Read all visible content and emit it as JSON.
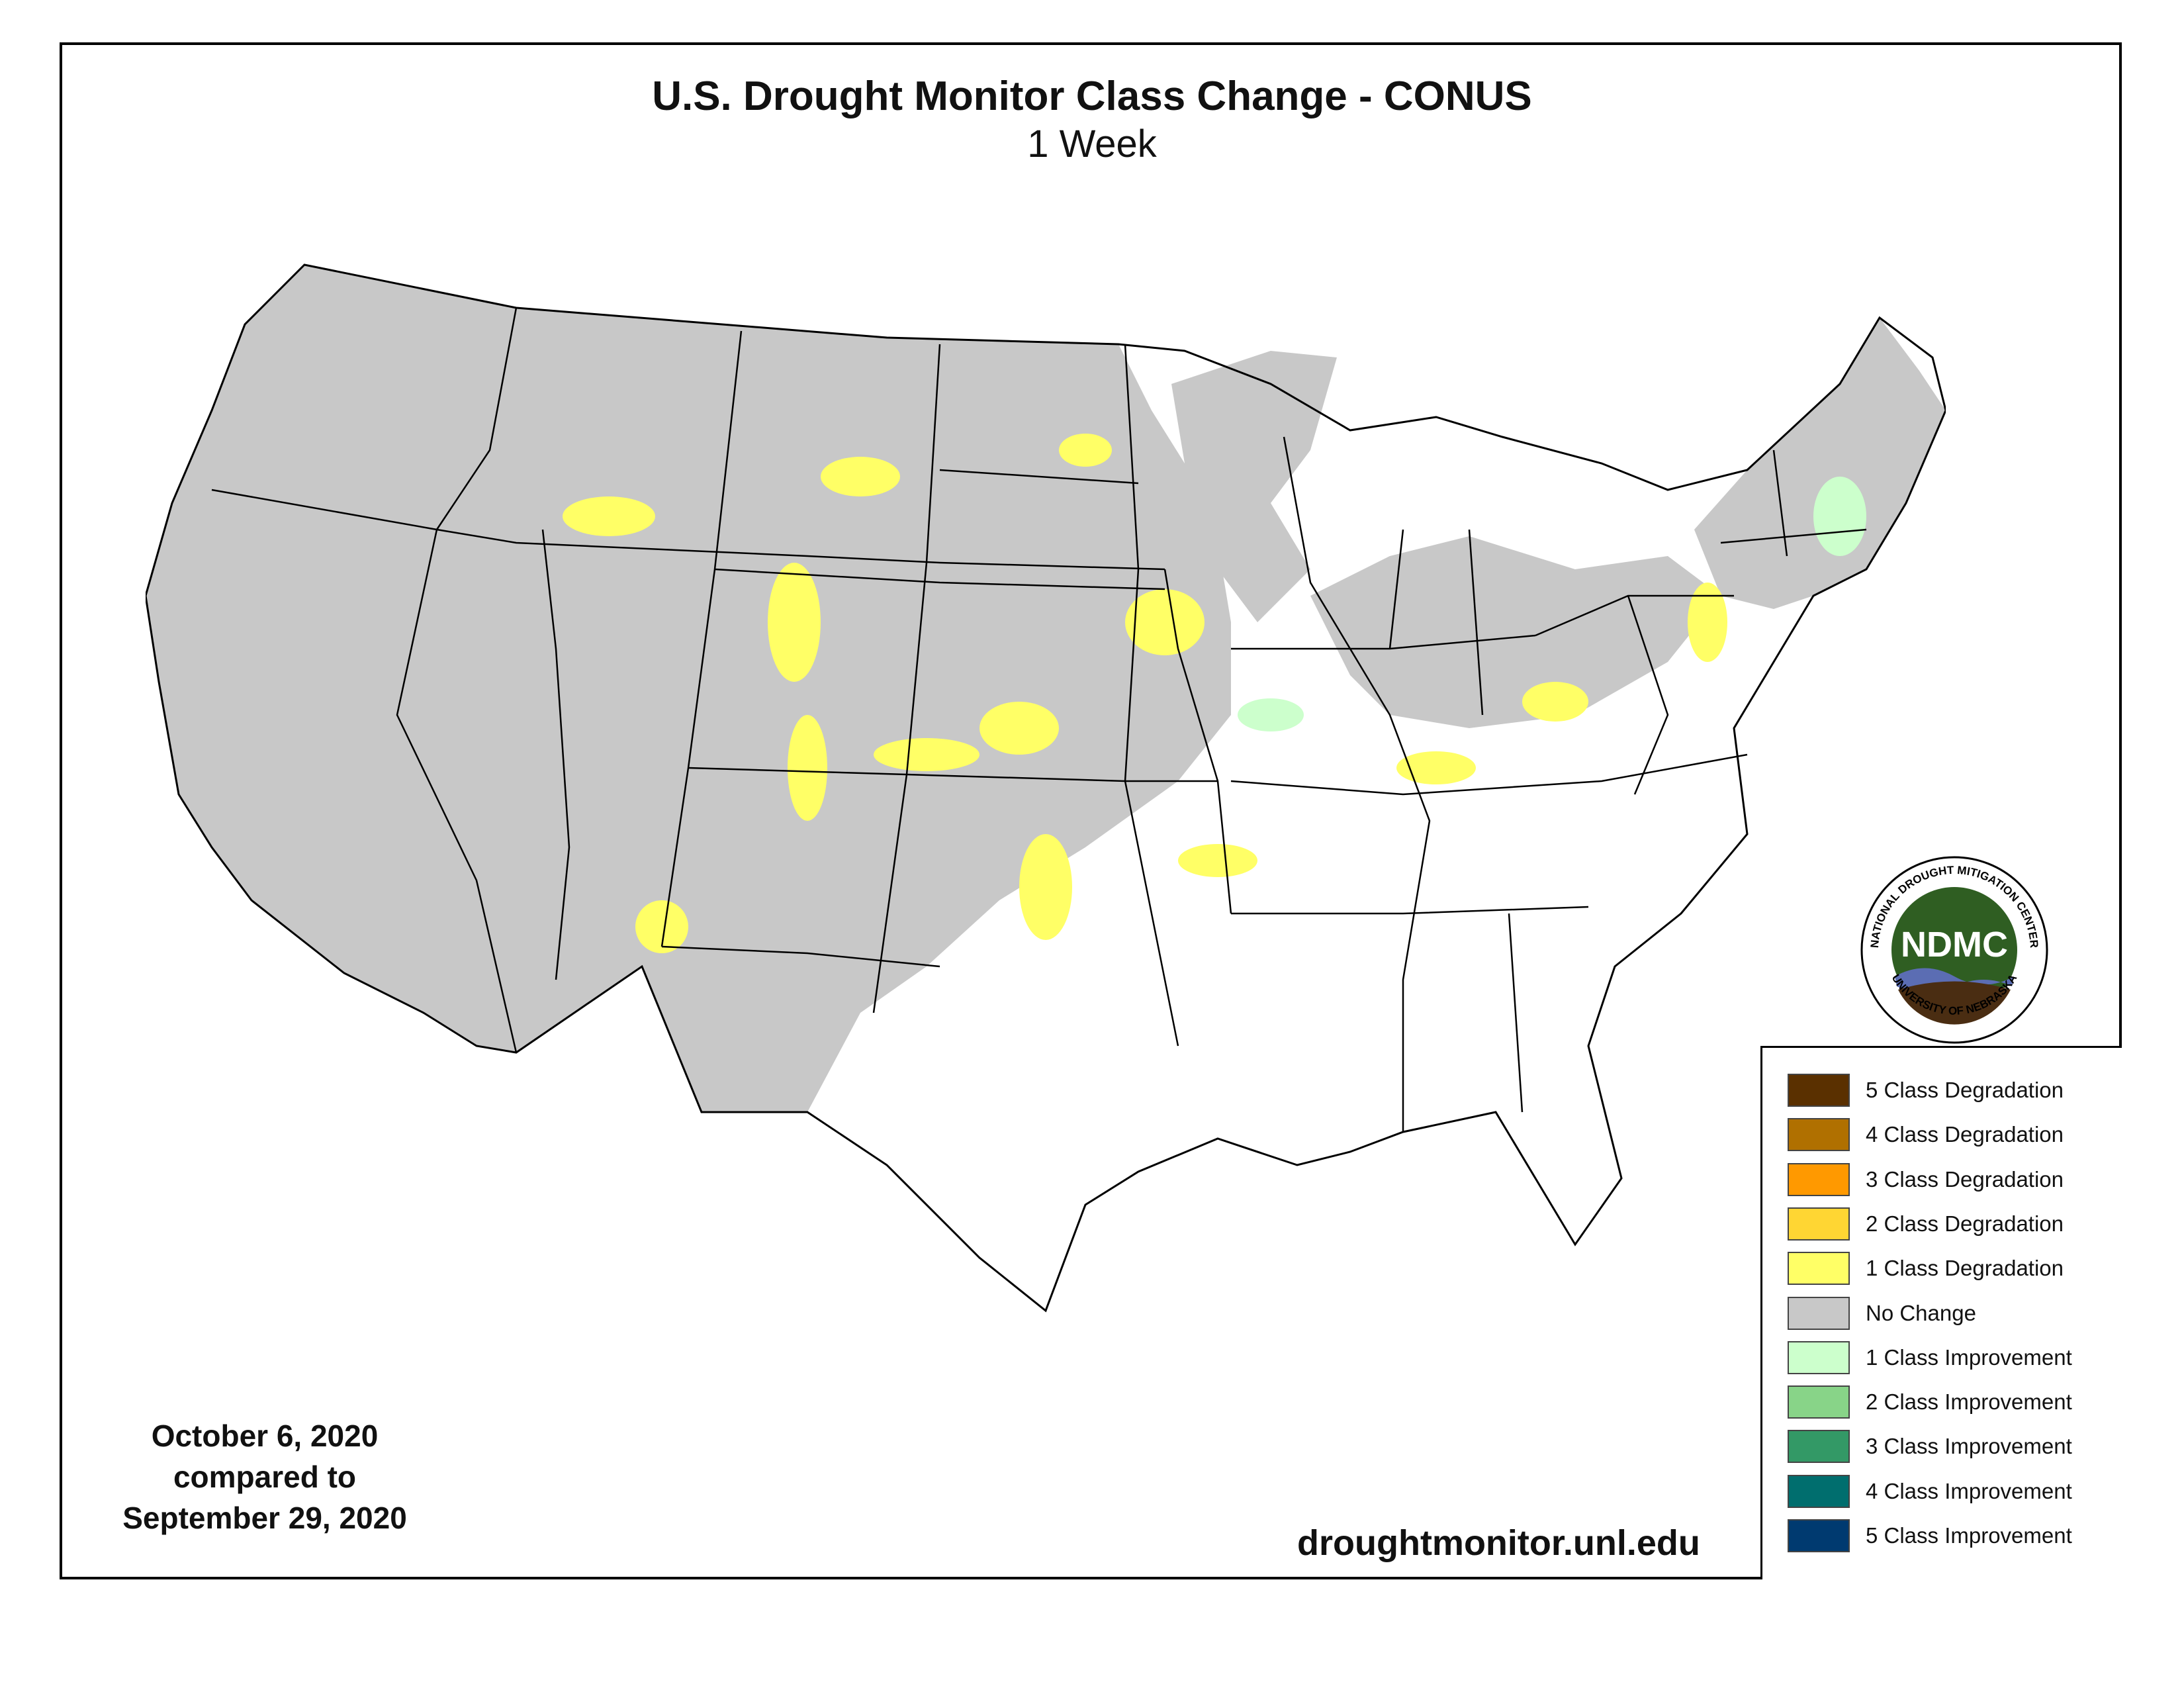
{
  "title": "U.S. Drought Monitor Class Change - CONUS",
  "subtitle": "1 Week",
  "dates": {
    "line1": "October 6, 2020",
    "line2": "compared to",
    "line3": "September 29, 2020"
  },
  "url": "droughtmonitor.unl.edu",
  "logo": {
    "center_text": "NDMC",
    "ring_top": "NATIONAL DROUGHT MITIGATION CENTER",
    "ring_bottom": "UNIVERSITY OF NEBRASKA",
    "colors": {
      "ring": "#ffffff",
      "field": "#2f5e22",
      "wave": "#5b6db3",
      "soil": "#4a2d12"
    }
  },
  "legend": [
    {
      "label": "5 Class Degradation",
      "color": "#5a3000"
    },
    {
      "label": "4 Class Degradation",
      "color": "#b07000"
    },
    {
      "label": "3 Class Degradation",
      "color": "#ff9900"
    },
    {
      "label": "2 Class Degradation",
      "color": "#ffd633"
    },
    {
      "label": "1 Class Degradation",
      "color": "#ffff66"
    },
    {
      "label": "No Change",
      "color": "#c8c8c8"
    },
    {
      "label": "1 Class Improvement",
      "color": "#ccffcc"
    },
    {
      "label": "2 Class Improvement",
      "color": "#88d488"
    },
    {
      "label": "3 Class Improvement",
      "color": "#339966"
    },
    {
      "label": "4 Class Improvement",
      "color": "#006e6e"
    },
    {
      "label": "5 Class Improvement",
      "color": "#003a70"
    }
  ],
  "map_colors": {
    "no_change": "#c8c8c8",
    "degradation_1": "#ffff66",
    "degradation_2": "#ffd633",
    "degradation_3": "#ff9900",
    "improvement_1": "#ccffcc",
    "improvement_2": "#88d488",
    "background": "#ffffff",
    "border": "#000000"
  }
}
